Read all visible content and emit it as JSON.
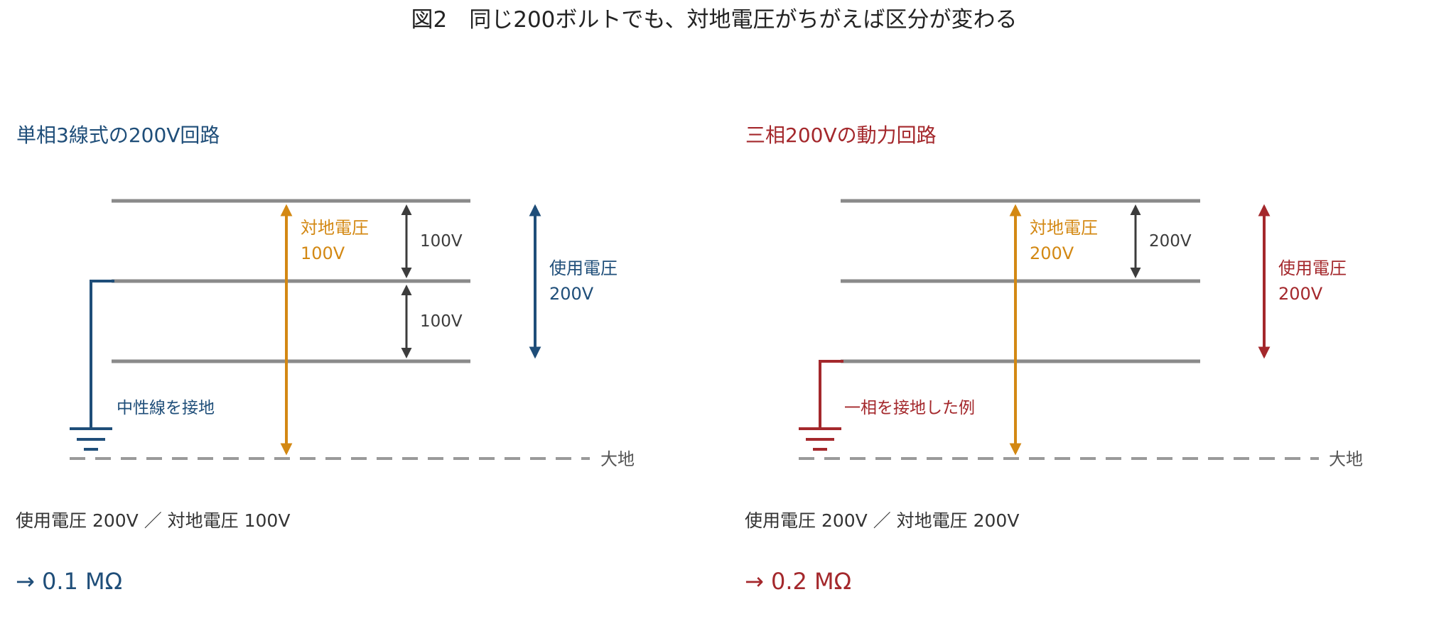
{
  "title": "図2　同じ200ボルトでも、対地電圧がちがえば区分が変わる",
  "colors": {
    "blue": "#1f4e79",
    "red": "#a4282c",
    "orange": "#d38813",
    "line": "#8a8a8a",
    "dark": "#3c3c3c",
    "ground_dash": "#9a9a9a"
  },
  "panels": [
    {
      "heading": "単相3線式の200V回路",
      "ground_wire_label": "中性線を接地",
      "earth_label": "大地",
      "line_voltage_1": "100V",
      "line_voltage_2": "100V",
      "ground_voltage_label": "対地電圧",
      "ground_voltage_value": "100V",
      "use_voltage_label": "使用電圧",
      "use_voltage_value": "200V",
      "summary": "使用電圧 200V ／ 対地電圧 100V",
      "result": "→ 0.1 MΩ"
    },
    {
      "heading": "三相200Vの動力回路",
      "ground_wire_label": "一相を接地した例",
      "earth_label": "大地",
      "line_voltage_1": "200V",
      "ground_voltage_label": "対地電圧",
      "ground_voltage_value": "200V",
      "use_voltage_label": "使用電圧",
      "use_voltage_value": "200V",
      "summary": "使用電圧 200V ／ 対地電圧 200V",
      "result": "→ 0.2 MΩ"
    }
  ]
}
